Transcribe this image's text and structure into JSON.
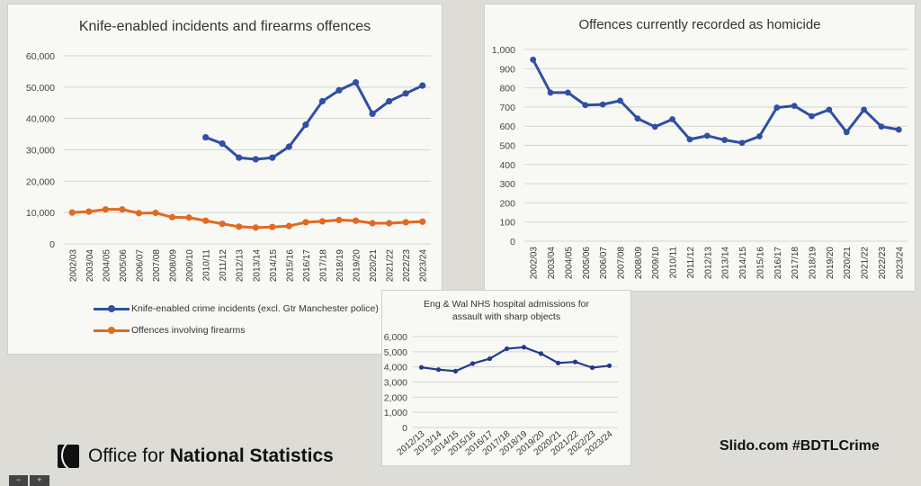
{
  "footer": {
    "brand_prefix": "Office for",
    "brand_main": "National Statistics",
    "slido": "Slido.com #BDTLCrime",
    "zoom_out": "−",
    "zoom_in": "+"
  },
  "legend": {
    "knife": "Knife-enabled crime incidents (excl. Gtr Manchester police)",
    "firearms": "Offences involving firearms"
  },
  "colors": {
    "blue": "#2f4fa3",
    "orange": "#e06a20",
    "grid": "#d4d4d0"
  },
  "chart_data": [
    {
      "type": "line",
      "title": "Knife-enabled incidents and firearms offences",
      "xlabel": "",
      "ylabel": "",
      "ylim": [
        0,
        60000
      ],
      "yticks": [
        "0",
        "10,000",
        "20,000",
        "30,000",
        "40,000",
        "50,000",
        "60,000"
      ],
      "grid": true,
      "legend_position": "bottom-left",
      "categories": [
        "2002/03",
        "2003/04",
        "2004/05",
        "2005/06",
        "2006/07",
        "2007/08",
        "2008/09",
        "2009/10",
        "2010/11",
        "2011/12",
        "2012/13",
        "2013/14",
        "2014/15",
        "2015/16",
        "2016/17",
        "2017/18",
        "2018/19",
        "2019/20",
        "2020/21",
        "2021/22",
        "2022/23",
        "2023/24"
      ],
      "series": [
        {
          "name": "Knife-enabled crime incidents (excl. Gtr Manchester police)",
          "color": "#2f4fa3",
          "values": [
            null,
            null,
            null,
            null,
            null,
            null,
            null,
            null,
            34000,
            32000,
            27500,
            27000,
            27500,
            31000,
            38000,
            45500,
            49000,
            51500,
            41500,
            45500,
            48000,
            50500
          ]
        },
        {
          "name": "Offences involving firearms",
          "color": "#e06a20",
          "values": [
            10000,
            10300,
            11000,
            11000,
            9800,
            9900,
            8500,
            8400,
            7400,
            6400,
            5500,
            5200,
            5400,
            5700,
            6900,
            7200,
            7600,
            7400,
            6600,
            6600,
            6900,
            7100
          ]
        }
      ]
    },
    {
      "type": "line",
      "title": "Offences currently recorded as homicide",
      "xlabel": "",
      "ylabel": "",
      "ylim": [
        0,
        1000
      ],
      "yticks": [
        "0",
        "100",
        "200",
        "300",
        "400",
        "500",
        "600",
        "700",
        "800",
        "900",
        "1,000"
      ],
      "grid": true,
      "categories": [
        "2002/03",
        "2003/04",
        "2004/05",
        "2005/06",
        "2006/07",
        "2007/08",
        "2008/09",
        "2009/10",
        "2010/11",
        "2011/12",
        "2012/13",
        "2013/14",
        "2014/15",
        "2015/16",
        "2016/17",
        "2017/18",
        "2018/19",
        "2019/20",
        "2020/21",
        "2021/22",
        "2022/23",
        "2023/24"
      ],
      "series": [
        {
          "name": "Homicide",
          "color": "#2f4fa3",
          "values": [
            947,
            775,
            775,
            710,
            713,
            733,
            640,
            597,
            636,
            531,
            550,
            528,
            513,
            547,
            697,
            706,
            652,
            686,
            569,
            686,
            598,
            582
          ]
        }
      ]
    },
    {
      "type": "line",
      "title": "Eng & Wal NHS hospital admissions for assault with sharp objects",
      "title_lines": [
        "Eng & Wal NHS hospital admissions for",
        "assault with sharp objects"
      ],
      "xlabel": "",
      "ylabel": "",
      "ylim": [
        0,
        6000
      ],
      "yticks": [
        "0",
        "1,000",
        "2,000",
        "3,000",
        "4,000",
        "5,000",
        "6,000"
      ],
      "grid": true,
      "categories": [
        "2012/13",
        "2013/14",
        "2014/15",
        "2015/16",
        "2016/17",
        "2017/18",
        "2018/19",
        "2019/20",
        "2020/21",
        "2021/22",
        "2022/23",
        "2023/24"
      ],
      "series": [
        {
          "name": "Hospital admissions",
          "color": "#233a8a",
          "values": [
            3970,
            3820,
            3720,
            4220,
            4540,
            5200,
            5300,
            4880,
            4260,
            4330,
            3950,
            4080
          ]
        }
      ]
    }
  ]
}
